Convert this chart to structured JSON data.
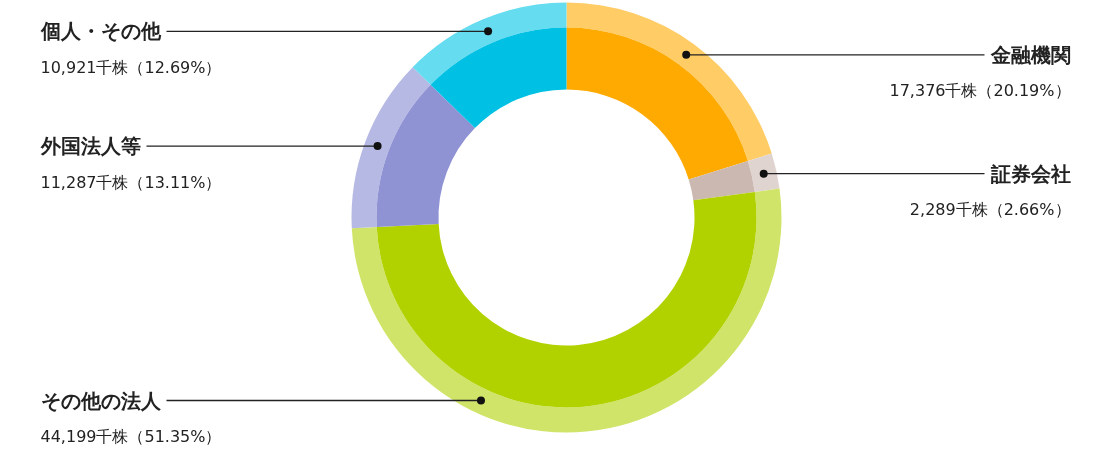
{
  "chart_data": {
    "type": "donut",
    "categories": [
      "金融機関",
      "証券会社",
      "その他の法人",
      "外国法人等",
      "個人・その他"
    ],
    "value_labels": [
      "17,376千株（20.19%）",
      "2,289千株（2.66%）",
      "44,199千株（51.35%）",
      "11,287千株（13.11%）",
      "10,921千株（12.69%）"
    ],
    "series": [
      {
        "values": [
          20.19,
          2.66,
          51.35,
          13.11,
          12.69
        ],
        "colors": [
          "#ffcc66",
          "#e0d4d0",
          "#d1e46a",
          "#b5b9e3",
          "#66dcf0"
        ]
      },
      {
        "values": [
          20.19,
          2.66,
          51.35,
          13.11,
          12.69
        ],
        "colors": [
          "#ffaa00",
          "#cbb8b1",
          "#b2d200",
          "#8f93d4",
          "#00c1e4"
        ]
      }
    ],
    "legend": false
  }
}
